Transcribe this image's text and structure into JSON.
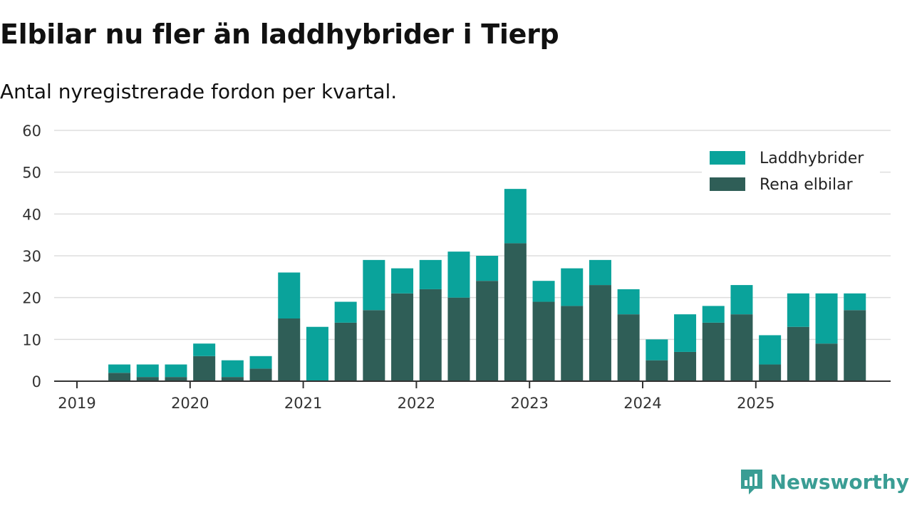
{
  "header": {
    "title": "Elbilar nu fler än laddhybrider i Tierp",
    "subtitle": "Antal nyregistrerade fordon per kvartal."
  },
  "colors": {
    "laddhybrider": "#0aa39b",
    "rena_elbilar": "#2f5e57",
    "grid": "#dddddd",
    "axis": "#333333"
  },
  "chart_data": {
    "type": "bar",
    "stacked": true,
    "title": "Elbilar nu fler än laddhybrider i Tierp",
    "subtitle": "Antal nyregistrerade fordon per kvartal.",
    "xlabel": "",
    "ylabel": "",
    "ylim": [
      0,
      60
    ],
    "yticks": [
      0,
      10,
      20,
      30,
      40,
      50,
      60
    ],
    "year_ticks": [
      "2019",
      "2020",
      "2021",
      "2022",
      "2023",
      "2024",
      "2025"
    ],
    "legend_position": "top-right",
    "categories": [
      "2019 Q2",
      "2019 Q3",
      "2019 Q4",
      "2020 Q1",
      "2020 Q2",
      "2020 Q3",
      "2020 Q4",
      "2021 Q1",
      "2021 Q2",
      "2021 Q3",
      "2021 Q4",
      "2022 Q1",
      "2022 Q2",
      "2022 Q3",
      "2022 Q4",
      "2023 Q1",
      "2023 Q2",
      "2023 Q3",
      "2023 Q4",
      "2024 Q1",
      "2024 Q2",
      "2024 Q3",
      "2024 Q4",
      "2025 Q1",
      "2025 Q2",
      "2025 Q3",
      "2025 Q4"
    ],
    "series": [
      {
        "name": "Rena elbilar",
        "values": [
          2,
          1,
          1,
          6,
          1,
          3,
          15,
          0,
          14,
          17,
          21,
          22,
          20,
          24,
          33,
          19,
          18,
          23,
          16,
          5,
          7,
          14,
          16,
          4,
          13,
          9,
          17
        ]
      },
      {
        "name": "Laddhybrider",
        "values": [
          2,
          3,
          3,
          3,
          4,
          3,
          11,
          13,
          5,
          12,
          6,
          7,
          11,
          6,
          13,
          5,
          9,
          6,
          6,
          5,
          9,
          4,
          7,
          7,
          8,
          12,
          4
        ]
      }
    ]
  },
  "logo": {
    "text": "Newsworthy"
  }
}
